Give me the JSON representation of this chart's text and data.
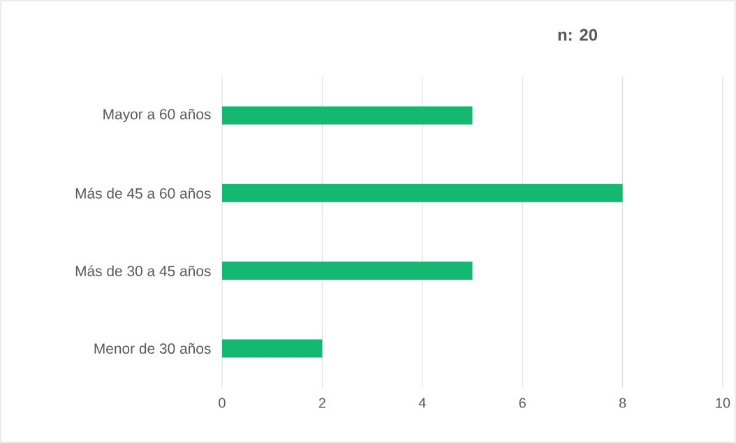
{
  "chart_data": {
    "type": "bar",
    "orientation": "horizontal",
    "title": "n: 20",
    "categories": [
      "Mayor a 60 años",
      "Más de 45 a 60 años",
      "Más de 30 a 45 años",
      "Menor de 30 años"
    ],
    "values": [
      5,
      8,
      5,
      2
    ],
    "color": "#14b870",
    "xlim": [
      0,
      10
    ],
    "xticks": [
      0,
      2,
      4,
      6,
      8,
      10
    ],
    "grid": "x"
  }
}
